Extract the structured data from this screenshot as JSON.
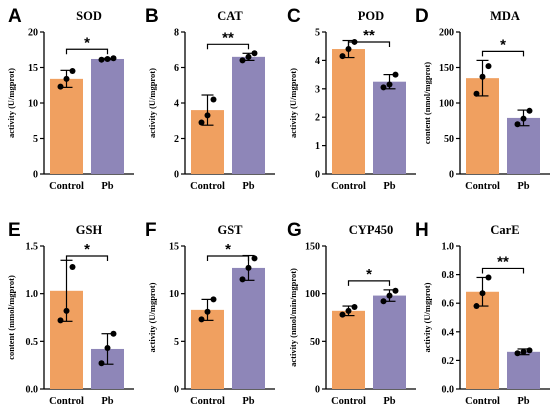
{
  "colors": {
    "control": "#F0A060",
    "pb": "#8E86B8",
    "axis": "#000000"
  },
  "chart_data": [
    {
      "type": "bar",
      "panel": "A",
      "title": "SOD",
      "ylabel": "activity (U/mgprot)",
      "ylim": [
        0,
        20
      ],
      "yticks": [
        0,
        5,
        10,
        15,
        20
      ],
      "categories": [
        "Control",
        "Pb"
      ],
      "values": [
        13.4,
        16.2
      ],
      "errors": [
        1.2,
        0.1
      ],
      "points": [
        [
          12.3,
          13.4,
          14.5
        ],
        [
          16.1,
          16.2,
          16.3
        ]
      ],
      "significance": "*"
    },
    {
      "type": "bar",
      "panel": "B",
      "title": "CAT",
      "ylabel": "activity (U/mgprot)",
      "ylim": [
        0,
        8
      ],
      "yticks": [
        0,
        2,
        4,
        6,
        8
      ],
      "categories": [
        "Control",
        "Pb"
      ],
      "values": [
        3.6,
        6.6
      ],
      "errors": [
        0.85,
        0.2
      ],
      "points": [
        [
          2.9,
          3.3,
          4.2
        ],
        [
          6.4,
          6.6,
          6.8
        ]
      ],
      "significance": "**"
    },
    {
      "type": "bar",
      "panel": "C",
      "title": "POD",
      "ylabel": "activity (U/mgprot)",
      "ylim": [
        0,
        5
      ],
      "yticks": [
        0,
        1,
        2,
        3,
        4,
        5
      ],
      "categories": [
        "Control",
        "Pb"
      ],
      "values": [
        4.4,
        3.25
      ],
      "errors": [
        0.3,
        0.25
      ],
      "points": [
        [
          4.15,
          4.4,
          4.65
        ],
        [
          3.05,
          3.15,
          3.5
        ]
      ],
      "significance": "**"
    },
    {
      "type": "bar",
      "panel": "D",
      "title": "MDA",
      "ylabel": "content (nmol/mgprot)",
      "ylim": [
        0,
        200
      ],
      "yticks": [
        0,
        50,
        100,
        150,
        200
      ],
      "categories": [
        "Control",
        "Pb"
      ],
      "values": [
        135,
        79
      ],
      "errors": [
        25,
        11
      ],
      "points": [
        [
          113,
          137,
          152
        ],
        [
          70,
          78,
          89
        ]
      ],
      "significance": "*"
    },
    {
      "type": "bar",
      "panel": "E",
      "title": "GSH",
      "ylabel": "content (mmol/mgprot)",
      "ylim": [
        0,
        1.5
      ],
      "yticks": [
        "0.0",
        "0.5",
        "1.0",
        "1.5"
      ],
      "categories": [
        "Control",
        "Pb"
      ],
      "values": [
        1.03,
        0.42
      ],
      "errors": [
        0.32,
        0.16
      ],
      "points": [
        [
          0.72,
          0.82,
          1.28
        ],
        [
          0.27,
          0.43,
          0.58
        ]
      ],
      "significance": "*"
    },
    {
      "type": "bar",
      "panel": "F",
      "title": "GST",
      "ylabel": "activity (U/mgprot)",
      "ylim": [
        0,
        15
      ],
      "yticks": [
        0,
        5,
        10,
        15
      ],
      "categories": [
        "Control",
        "Pb"
      ],
      "values": [
        8.3,
        12.7
      ],
      "errors": [
        1.1,
        1.3
      ],
      "points": [
        [
          7.3,
          8.1,
          9.4
        ],
        [
          11.5,
          12.7,
          13.7
        ]
      ],
      "significance": "*"
    },
    {
      "type": "bar",
      "panel": "G",
      "title": "CYP450",
      "ylabel": "activity (nmol/min/mgprot)",
      "ylim": [
        0,
        150
      ],
      "yticks": [
        0,
        50,
        100,
        150
      ],
      "categories": [
        "Control",
        "Pb"
      ],
      "values": [
        82,
        98
      ],
      "errors": [
        5,
        6
      ],
      "points": [
        [
          78,
          82,
          86
        ],
        [
          92,
          98,
          103
        ]
      ],
      "significance": "*"
    },
    {
      "type": "bar",
      "panel": "H",
      "title": "CarE",
      "ylabel": "activity (U/mgprot)",
      "ylim": [
        0,
        1.0
      ],
      "yticks": [
        "0.0",
        "0.2",
        "0.4",
        "0.6",
        "0.8",
        "1.0"
      ],
      "categories": [
        "Control",
        "Pb"
      ],
      "values": [
        0.68,
        0.26
      ],
      "errors": [
        0.1,
        0.02
      ],
      "points": [
        [
          0.58,
          0.67,
          0.78
        ],
        [
          0.25,
          0.26,
          0.27
        ]
      ],
      "significance": "**"
    }
  ]
}
